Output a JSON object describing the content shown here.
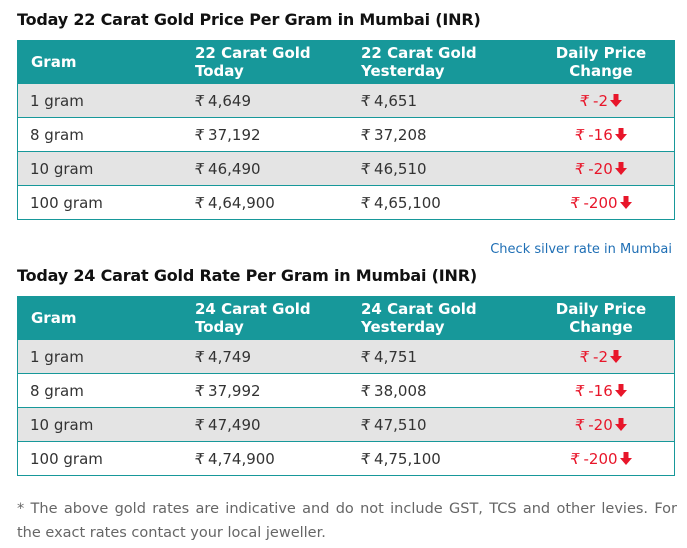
{
  "table1": {
    "title": "Today 22 Carat Gold Price Per Gram in Mumbai (INR)",
    "headers": {
      "gram": "Gram",
      "today_line1": "22 Carat Gold",
      "today_line2": "Today",
      "yesterday_line1": "22 Carat Gold",
      "yesterday_line2": "Yesterday",
      "change": "Daily Price Change"
    },
    "rows": [
      {
        "gram": "1 gram",
        "today": "4,649",
        "yesterday": "4,651",
        "change": "-2"
      },
      {
        "gram": "8 gram",
        "today": "37,192",
        "yesterday": "37,208",
        "change": "-16"
      },
      {
        "gram": "10 gram",
        "today": "46,490",
        "yesterday": "46,510",
        "change": "-20"
      },
      {
        "gram": "100 gram",
        "today": "4,64,900",
        "yesterday": "4,65,100",
        "change": "-200"
      }
    ]
  },
  "silver_link": "Check silver rate in Mumbai",
  "table2": {
    "title": "Today 24 Carat Gold Rate Per Gram in Mumbai (INR)",
    "headers": {
      "gram": "Gram",
      "today_line1": "24 Carat Gold",
      "today_line2": "Today",
      "yesterday_line1": "24 Carat Gold",
      "yesterday_line2": "Yesterday",
      "change": "Daily Price Change"
    },
    "rows": [
      {
        "gram": "1 gram",
        "today": "4,749",
        "yesterday": "4,751",
        "change": "-2"
      },
      {
        "gram": "8 gram",
        "today": "37,992",
        "yesterday": "38,008",
        "change": "-16"
      },
      {
        "gram": "10 gram",
        "today": "47,490",
        "yesterday": "47,510",
        "change": "-20"
      },
      {
        "gram": "100 gram",
        "today": "4,74,900",
        "yesterday": "4,75,100",
        "change": "-200"
      }
    ]
  },
  "currency_symbol": "₹",
  "footnote": "* The above gold rates are indicative and do not include GST, TCS and other levies. For the exact rates contact your local jeweller.",
  "colors": {
    "header": "#17989a",
    "row_alt": "#e4e4e4",
    "down": "#e8162a",
    "link": "#1f6fb5"
  },
  "icons": {
    "change_direction": "down-arrow-icon"
  }
}
